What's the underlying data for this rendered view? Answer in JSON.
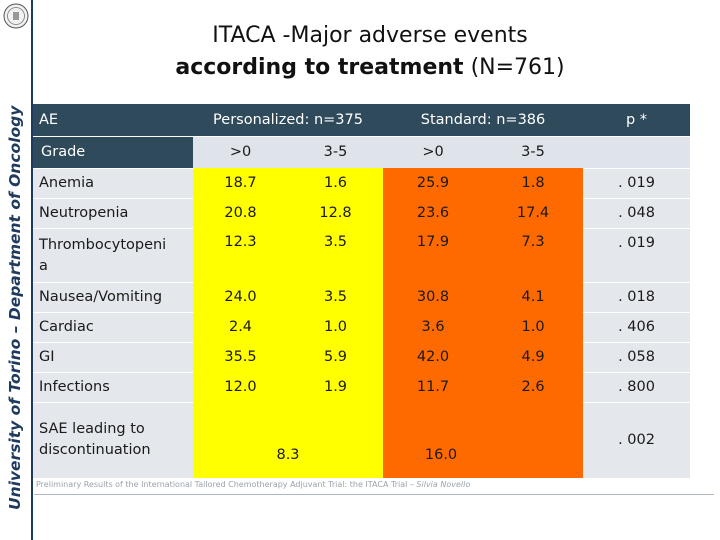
{
  "sidebar": {
    "label": "University of Torino – Department of Oncology",
    "seal_icon": "university-seal-icon"
  },
  "title": {
    "line1": "ITACA -Major adverse events",
    "line2_bold": "according to treatment",
    "line2_rest": " (N=761)"
  },
  "table": {
    "headers": {
      "ae": "AE",
      "personalized": "Personalized: n=375",
      "standard": "Standard: n=386",
      "p": "p *"
    },
    "subheaders": {
      "grade": "Grade",
      "p_gt0": ">0",
      "p_35": "3-5",
      "s_gt0": ">0",
      "s_35": "3-5"
    },
    "rows": [
      {
        "label": "Anemia",
        "p_gt0": "18.7",
        "p_35": "1.6",
        "s_gt0": "25.9",
        "s_35": "1.8",
        "p": ". 019"
      },
      {
        "label": "Neutropenia",
        "p_gt0": "20.8",
        "p_35": "12.8",
        "s_gt0": "23.6",
        "s_35": "17.4",
        "p": ". 048"
      },
      {
        "label": "Thrombocytopeni a",
        "p_gt0": "12.3",
        "p_35": "3.5",
        "s_gt0": "17.9",
        "s_35": "7.3",
        "p": ". 019"
      },
      {
        "label": "Nausea/Vomiting",
        "p_gt0": "24.0",
        "p_35": "3.5",
        "s_gt0": "30.8",
        "s_35": "4.1",
        "p": ". 018"
      },
      {
        "label": "Cardiac",
        "p_gt0": "2.4",
        "p_35": "1.0",
        "s_gt0": "3.6",
        "s_35": "1.0",
        "p": ". 406"
      },
      {
        "label": "GI",
        "p_gt0": "35.5",
        "p_35": "5.9",
        "s_gt0": "42.0",
        "s_35": "4.9",
        "p": ". 058"
      },
      {
        "label": "Infections",
        "p_gt0": "12.0",
        "p_35": "1.9",
        "s_gt0": "11.7",
        "s_35": "2.6",
        "p": ". 800"
      }
    ],
    "sae": {
      "label": "SAE leading to discontinuation",
      "personalized": "8.3",
      "standard": "16.0",
      "p": ". 002"
    }
  },
  "footer": {
    "text": "Preliminary Results of the International Tailored Chemotherapy Adjuvant Trial: the ITACA Trial – ",
    "author": "Silvia Novello"
  },
  "colors": {
    "header_bg": "#2e4a5b",
    "personalized": "#ffff00",
    "standard": "#ff6a00"
  }
}
